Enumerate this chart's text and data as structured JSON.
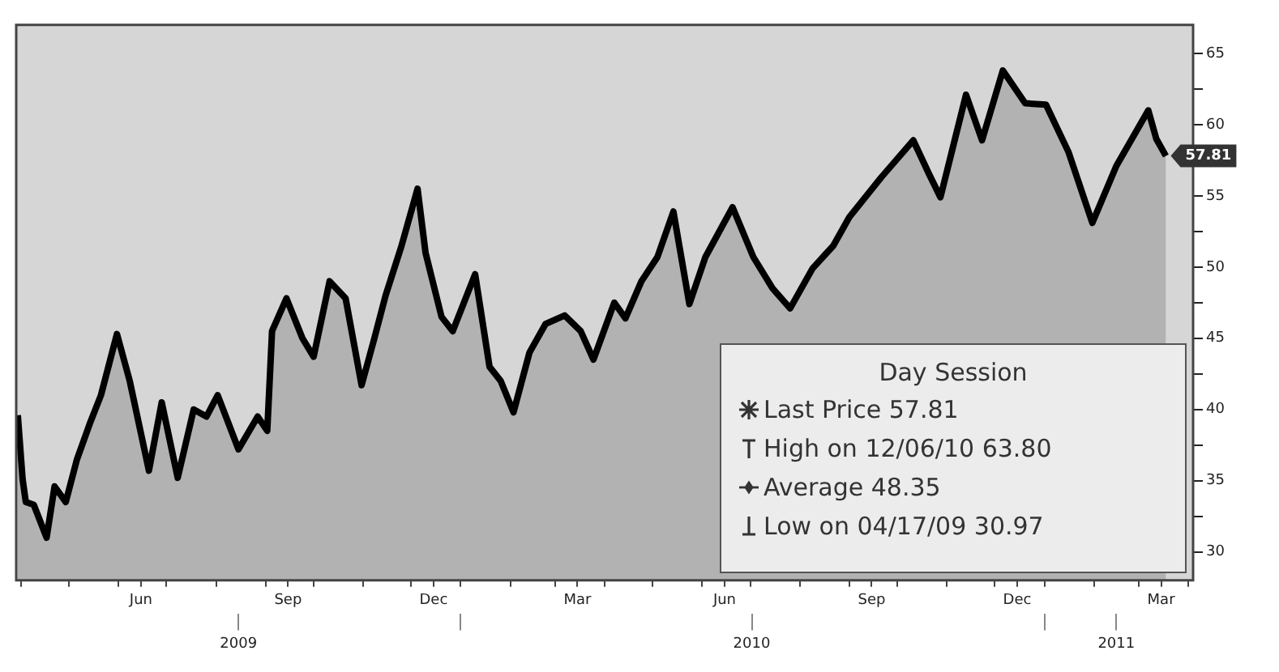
{
  "chart_data": {
    "type": "area",
    "legend_title": "Day Session",
    "annotations": [
      "Last Price 57.81",
      "High on 12/06/10 63.80",
      "Average 48.35",
      "Low on 04/17/09 30.97",
      {
        "text": "57.81",
        "x": "2011-03-18",
        "y": 57.81
      }
    ],
    "x": [
      "2009-03-30",
      "2009-04-02",
      "2009-04-04",
      "2009-04-09",
      "2009-04-17",
      "2009-04-22",
      "2009-04-29",
      "2009-05-06",
      "2009-05-14",
      "2009-05-21",
      "2009-05-31",
      "2009-06-08",
      "2009-06-20",
      "2009-06-28",
      "2009-07-08",
      "2009-07-18",
      "2009-07-26",
      "2009-08-02",
      "2009-08-15",
      "2009-08-27",
      "2009-09-02",
      "2009-09-05",
      "2009-09-14",
      "2009-09-24",
      "2009-10-01",
      "2009-10-11",
      "2009-10-21",
      "2009-10-31",
      "2009-11-08",
      "2009-11-15",
      "2009-11-25",
      "2009-12-05",
      "2009-12-10",
      "2009-12-20",
      "2009-12-27",
      "2010-01-10",
      "2010-01-19",
      "2010-01-26",
      "2010-02-03",
      "2010-02-13",
      "2010-02-23",
      "2010-03-07",
      "2010-03-17",
      "2010-03-25",
      "2010-04-07",
      "2010-04-14",
      "2010-04-24",
      "2010-05-04",
      "2010-05-14",
      "2010-05-24",
      "2010-06-03",
      "2010-06-20",
      "2010-07-03",
      "2010-07-15",
      "2010-07-26",
      "2010-08-09",
      "2010-08-22",
      "2010-09-01",
      "2010-09-21",
      "2010-10-11",
      "2010-10-21",
      "2010-10-28",
      "2010-11-05",
      "2010-11-13",
      "2010-11-23",
      "2010-12-06",
      "2010-12-20",
      "2011-01-02",
      "2011-01-16",
      "2011-01-31",
      "2011-02-15",
      "2011-03-07",
      "2011-03-12",
      "2011-03-18"
    ],
    "series": [
      {
        "color": "#000000",
        "values": [
          39.6,
          35.1,
          33.5,
          33.3,
          31.0,
          34.6,
          33.5,
          36.5,
          39.0,
          41.0,
          45.3,
          42.0,
          35.7,
          40.5,
          35.2,
          40.0,
          39.5,
          41.0,
          37.2,
          39.5,
          38.5,
          45.5,
          47.8,
          45.0,
          43.7,
          49.0,
          47.8,
          41.7,
          45.0,
          48.0,
          51.5,
          55.5,
          51.0,
          46.5,
          45.5,
          49.5,
          43.0,
          42.0,
          39.8,
          44.0,
          46.0,
          46.6,
          45.5,
          43.5,
          47.5,
          46.4,
          49.0,
          50.7,
          53.9,
          47.4,
          50.7,
          54.2,
          50.7,
          48.5,
          47.1,
          49.9,
          51.5,
          53.5,
          56.3,
          58.9,
          56.5,
          54.9,
          58.5,
          62.1,
          58.9,
          63.8,
          61.5,
          61.4,
          58.1,
          53.1,
          57.1,
          61.0,
          59.0,
          57.8
        ]
      }
    ],
    "xlim": [
      "2009-03-29",
      "2011-04-04"
    ],
    "xticks": [
      {
        "value": "2009-04-01",
        "label": null
      },
      {
        "value": "2009-05-01",
        "label": null
      },
      {
        "value": "2009-06-01",
        "label": null
      },
      {
        "value": "2009-06-15",
        "label": "Jun"
      },
      {
        "value": "2009-07-01",
        "label": null
      },
      {
        "value": "2009-08-01",
        "label": null
      },
      {
        "value": "2009-09-01",
        "label": null
      },
      {
        "value": "2009-09-15",
        "label": "Sep"
      },
      {
        "value": "2009-10-01",
        "label": null
      },
      {
        "value": "2009-11-01",
        "label": null
      },
      {
        "value": "2009-12-01",
        "label": null
      },
      {
        "value": "2009-12-15",
        "label": "Dec"
      },
      {
        "value": "2010-01-01",
        "label": null
      },
      {
        "value": "2010-02-01",
        "label": null
      },
      {
        "value": "2010-03-01",
        "label": null
      },
      {
        "value": "2010-03-15",
        "label": "Mar"
      },
      {
        "value": "2010-04-01",
        "label": null
      },
      {
        "value": "2010-05-01",
        "label": null
      },
      {
        "value": "2010-06-01",
        "label": null
      },
      {
        "value": "2010-06-15",
        "label": "Jun"
      },
      {
        "value": "2010-07-01",
        "label": null
      },
      {
        "value": "2010-08-01",
        "label": null
      },
      {
        "value": "2010-09-01",
        "label": null
      },
      {
        "value": "2010-09-15",
        "label": "Sep"
      },
      {
        "value": "2010-10-01",
        "label": null
      },
      {
        "value": "2010-11-01",
        "label": null
      },
      {
        "value": "2010-12-01",
        "label": null
      },
      {
        "value": "2010-12-15",
        "label": "Dec"
      },
      {
        "value": "2011-01-01",
        "label": null
      },
      {
        "value": "2011-02-01",
        "label": null
      },
      {
        "value": "2011-03-01",
        "label": null
      },
      {
        "value": "2011-03-15",
        "label": "Mar"
      },
      {
        "value": "2011-04-01",
        "label": null
      }
    ],
    "x2lim": [
      "2009-03-29",
      "2011-04-04"
    ],
    "x2ticks": [
      {
        "value": "2009-08-15",
        "label": "2009"
      },
      {
        "value": "2010-01-01",
        "label": null
      },
      {
        "value": "2010-07-02",
        "label": "2010"
      },
      {
        "value": "2011-01-01",
        "label": null
      },
      {
        "value": "2011-02-15",
        "label": "2011"
      }
    ],
    "ylim": [
      28,
      67
    ],
    "yticks": [
      30,
      {
        "value": 32.5,
        "label": null
      },
      35,
      {
        "value": 37.5,
        "label": null
      },
      40,
      {
        "value": 42.5,
        "label": null
      },
      45,
      {
        "value": 47.5,
        "label": null
      },
      50,
      {
        "value": 52.5,
        "label": null
      },
      55,
      {
        "value": 57.5,
        "label": null
      },
      60,
      {
        "value": 62.5,
        "label": null
      },
      65
    ],
    "tick_labels": "xy"
  }
}
